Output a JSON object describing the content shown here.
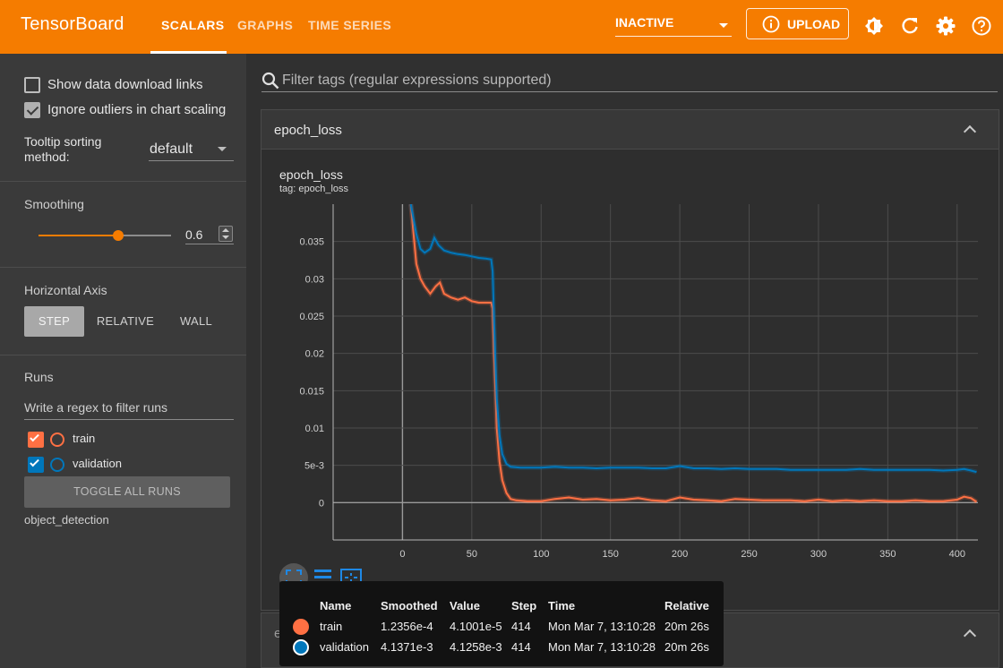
{
  "app": {
    "title": "TensorBoard"
  },
  "tabs": [
    {
      "label": "SCALARS",
      "active": true
    },
    {
      "label": "GRAPHS",
      "active": false
    },
    {
      "label": "TIME SERIES",
      "active": false
    }
  ],
  "run_select": {
    "value": "INACTIVE"
  },
  "upload": {
    "label": "UPLOAD"
  },
  "sidebar": {
    "show_download_links": {
      "label": "Show data download links",
      "checked": false
    },
    "ignore_outliers": {
      "label": "Ignore outliers in chart scaling",
      "checked": true
    },
    "tooltip_sorting": {
      "label_line1": "Tooltip sorting",
      "label_line2": "method:",
      "value": "default"
    },
    "smoothing": {
      "title": "Smoothing",
      "value": "0.6",
      "fraction": 0.6
    },
    "horizontal_axis": {
      "title": "Horizontal Axis",
      "options": [
        "STEP",
        "RELATIVE",
        "WALL"
      ],
      "selected": "STEP"
    },
    "runs": {
      "title": "Runs",
      "filter_placeholder": "Write a regex to filter runs",
      "items": [
        {
          "name": "train",
          "checked": true,
          "color": "#ff7043"
        },
        {
          "name": "validation",
          "checked": true,
          "color": "#0077bb"
        }
      ],
      "toggle_all_label": "TOGGLE ALL RUNS",
      "folder": "object_detection"
    }
  },
  "filter": {
    "placeholder": "Filter tags (regular expressions supported)"
  },
  "card": {
    "title": "epoch_loss",
    "chart_title": "epoch_loss",
    "chart_tag": "tag: epoch_loss"
  },
  "card2": {
    "title": "evaluation_loss_vs_iterations"
  },
  "tooltip": {
    "headers": {
      "name": "Name",
      "smoothed": "Smoothed",
      "value": "Value",
      "step": "Step",
      "time": "Time",
      "relative": "Relative"
    },
    "rows": [
      {
        "name": "train",
        "smoothed": "1.2356e-4",
        "value": "4.1001e-5",
        "step": "414",
        "time": "Mon Mar 7, 13:10:28",
        "relative": "20m 26s",
        "color": "#ff7043"
      },
      {
        "name": "validation",
        "smoothed": "4.1371e-3",
        "value": "4.1258e-3",
        "step": "414",
        "time": "Mon Mar 7, 13:10:28",
        "relative": "20m 26s",
        "color": "#0077bb"
      }
    ]
  },
  "chart_data": {
    "type": "line",
    "title": "",
    "xlabel": "",
    "ylabel": "",
    "xlim": [
      -50,
      415
    ],
    "ylim": [
      -0.005,
      0.04
    ],
    "x_ticks": [
      0,
      50,
      100,
      150,
      200,
      250,
      300,
      350,
      400
    ],
    "x_tick_labels": [
      "0",
      "50",
      "100",
      "150",
      "200",
      "250",
      "300",
      "350",
      "400"
    ],
    "y_ticks": [
      0,
      0.005,
      0.01,
      0.015,
      0.02,
      0.025,
      0.03,
      0.035
    ],
    "y_tick_labels": [
      "0",
      "5e-3",
      "0.01",
      "0.015",
      "0.02",
      "0.025",
      "0.03",
      "0.035"
    ],
    "grid": true,
    "series": [
      {
        "name": "train",
        "color": "#ff7043",
        "points": [
          [
            6,
            0.04
          ],
          [
            8,
            0.036
          ],
          [
            10,
            0.032
          ],
          [
            13,
            0.03
          ],
          [
            16,
            0.029
          ],
          [
            20,
            0.028
          ],
          [
            24,
            0.029
          ],
          [
            27,
            0.0295
          ],
          [
            30,
            0.028
          ],
          [
            35,
            0.0275
          ],
          [
            40,
            0.0272
          ],
          [
            45,
            0.0275
          ],
          [
            50,
            0.027
          ],
          [
            55,
            0.0268
          ],
          [
            60,
            0.0268
          ],
          [
            64,
            0.0268
          ],
          [
            65,
            0.026
          ],
          [
            66,
            0.02
          ],
          [
            67,
            0.015
          ],
          [
            68,
            0.01
          ],
          [
            70,
            0.0055
          ],
          [
            72,
            0.003
          ],
          [
            75,
            0.0013
          ],
          [
            78,
            0.0005
          ],
          [
            82,
            0.0003
          ],
          [
            90,
            0.0002
          ],
          [
            100,
            0.0002
          ],
          [
            110,
            0.0005
          ],
          [
            120,
            0.0007
          ],
          [
            130,
            0.0004
          ],
          [
            140,
            0.0005
          ],
          [
            150,
            0.0003
          ],
          [
            160,
            0.0004
          ],
          [
            170,
            0.0006
          ],
          [
            180,
            0.0003
          ],
          [
            190,
            0.0002
          ],
          [
            200,
            0.0007
          ],
          [
            210,
            0.0004
          ],
          [
            220,
            0.0003
          ],
          [
            230,
            0.0002
          ],
          [
            240,
            0.0005
          ],
          [
            250,
            0.0004
          ],
          [
            260,
            0.0003
          ],
          [
            270,
            0.0003
          ],
          [
            280,
            0.0003
          ],
          [
            290,
            0.0002
          ],
          [
            300,
            0.0004
          ],
          [
            310,
            0.0002
          ],
          [
            320,
            0.0003
          ],
          [
            330,
            0.0002
          ],
          [
            340,
            0.0003
          ],
          [
            350,
            0.0002
          ],
          [
            360,
            0.0002
          ],
          [
            370,
            0.0003
          ],
          [
            380,
            0.0002
          ],
          [
            390,
            0.0002
          ],
          [
            400,
            0.0004
          ],
          [
            405,
            0.0008
          ],
          [
            410,
            0.0006
          ],
          [
            414,
            0.0001
          ]
        ]
      },
      {
        "name": "validation",
        "color": "#0077bb",
        "points": [
          [
            6,
            0.04
          ],
          [
            8,
            0.038
          ],
          [
            10,
            0.036
          ],
          [
            13,
            0.034
          ],
          [
            16,
            0.0335
          ],
          [
            20,
            0.034
          ],
          [
            23,
            0.0355
          ],
          [
            26,
            0.0345
          ],
          [
            30,
            0.0338
          ],
          [
            35,
            0.0335
          ],
          [
            40,
            0.0333
          ],
          [
            45,
            0.0332
          ],
          [
            50,
            0.033
          ],
          [
            55,
            0.0328
          ],
          [
            60,
            0.0327
          ],
          [
            64,
            0.0326
          ],
          [
            65,
            0.031
          ],
          [
            66,
            0.025
          ],
          [
            67,
            0.019
          ],
          [
            68,
            0.014
          ],
          [
            70,
            0.009
          ],
          [
            72,
            0.0065
          ],
          [
            75,
            0.0052
          ],
          [
            78,
            0.0048
          ],
          [
            85,
            0.0047
          ],
          [
            100,
            0.0047
          ],
          [
            110,
            0.0048
          ],
          [
            120,
            0.0047
          ],
          [
            130,
            0.0047
          ],
          [
            140,
            0.0046
          ],
          [
            150,
            0.0047
          ],
          [
            160,
            0.0047
          ],
          [
            170,
            0.0047
          ],
          [
            180,
            0.0046
          ],
          [
            190,
            0.0046
          ],
          [
            200,
            0.0049
          ],
          [
            210,
            0.0046
          ],
          [
            220,
            0.0046
          ],
          [
            230,
            0.0045
          ],
          [
            240,
            0.0046
          ],
          [
            250,
            0.0045
          ],
          [
            260,
            0.0045
          ],
          [
            270,
            0.0045
          ],
          [
            280,
            0.0044
          ],
          [
            290,
            0.0044
          ],
          [
            300,
            0.0044
          ],
          [
            310,
            0.0044
          ],
          [
            320,
            0.0044
          ],
          [
            330,
            0.0045
          ],
          [
            340,
            0.0044
          ],
          [
            350,
            0.0044
          ],
          [
            360,
            0.0044
          ],
          [
            370,
            0.0044
          ],
          [
            380,
            0.0044
          ],
          [
            390,
            0.0043
          ],
          [
            400,
            0.0044
          ],
          [
            405,
            0.0045
          ],
          [
            410,
            0.0043
          ],
          [
            414,
            0.0041
          ]
        ]
      }
    ]
  }
}
